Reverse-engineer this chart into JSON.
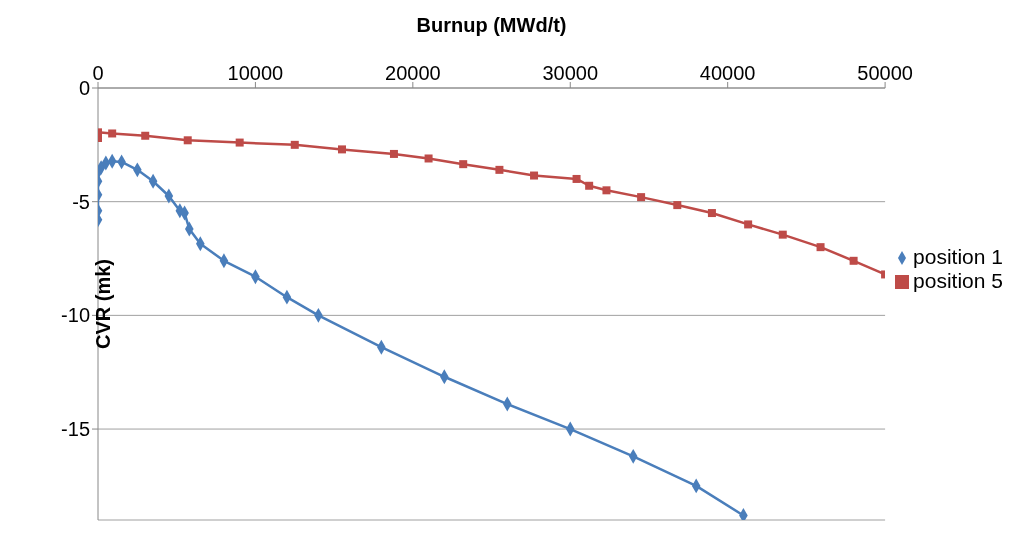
{
  "chart_data": {
    "type": "line",
    "xlabel": "Burnup (MWd/t)",
    "ylabel": "CVR (mk)",
    "xlim": [
      0,
      50000
    ],
    "xticks": [
      0,
      10000,
      20000,
      30000,
      40000,
      50000
    ],
    "ylim": [
      -19,
      0
    ],
    "yticks": [
      -15,
      -10,
      -5,
      0
    ],
    "grid": "y",
    "legend": "right",
    "line_style": "solid",
    "series": [
      {
        "name": "position 1",
        "color": "#4a7ebb",
        "marker": "diamond",
        "x": [
          0,
          0,
          0,
          0,
          0,
          200,
          500,
          900,
          1500,
          2500,
          3500,
          4500,
          5200,
          5500,
          5800,
          6500,
          8000,
          10000,
          12000,
          14000,
          18000,
          22000,
          26000,
          30000,
          34000,
          38000,
          41000
        ],
        "values": [
          -5.8,
          -5.4,
          -4.7,
          -4.1,
          -3.7,
          -3.5,
          -3.3,
          -3.22,
          -3.25,
          -3.6,
          -4.1,
          -4.75,
          -5.4,
          -5.5,
          -6.2,
          -6.85,
          -7.6,
          -8.3,
          -9.2,
          -10.0,
          -11.4,
          -12.7,
          -13.9,
          -15.0,
          -16.2,
          -17.5,
          -18.8
        ]
      },
      {
        "name": "position 5",
        "color": "#be4b48",
        "marker": "square",
        "x": [
          0,
          0,
          900,
          3000,
          5700,
          9000,
          12500,
          15500,
          18800,
          21000,
          23200,
          25500,
          27700,
          30400,
          31200,
          32300,
          34500,
          36800,
          39000,
          41300,
          43500,
          45900,
          48000,
          50000
        ],
        "values": [
          -2.2,
          -1.95,
          -2.0,
          -2.1,
          -2.3,
          -2.4,
          -2.5,
          -2.7,
          -2.9,
          -3.1,
          -3.35,
          -3.6,
          -3.85,
          -4.0,
          -4.3,
          -4.5,
          -4.8,
          -5.15,
          -5.5,
          -6.0,
          -6.45,
          -7.0,
          -7.6,
          -8.2
        ]
      }
    ]
  }
}
